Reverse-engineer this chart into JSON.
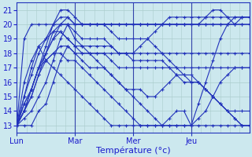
{
  "xlabel": "Température (°c)",
  "xlim": [
    0,
    96
  ],
  "ylim": [
    12.5,
    21.5
  ],
  "yticks": [
    13,
    14,
    15,
    16,
    17,
    18,
    19,
    20,
    21
  ],
  "day_ticks": [
    0,
    24,
    48,
    72
  ],
  "day_labels": [
    "Lun",
    "Mar",
    "Mer",
    "Jeu"
  ],
  "bg_color": "#cce8ee",
  "line_color": "#2233bb",
  "grid_color": "#aacccc",
  "series": [
    {
      "x": [
        0,
        3,
        6,
        9,
        12,
        15,
        18,
        21,
        24,
        27,
        30,
        33,
        36,
        39,
        42,
        45,
        48,
        51,
        54,
        57,
        60,
        63,
        66,
        69,
        72,
        75,
        78,
        81,
        84,
        87,
        90,
        93,
        96
      ],
      "y": [
        13,
        13,
        13,
        14,
        14.5,
        16,
        17.5,
        18.5,
        18,
        18,
        18,
        18,
        18,
        18,
        18,
        18,
        18,
        18.5,
        19,
        19.5,
        20,
        20,
        20,
        20,
        20,
        20,
        20,
        20,
        20,
        20,
        20,
        20.5,
        20.5
      ]
    },
    {
      "x": [
        0,
        3,
        6,
        9,
        12,
        15,
        18,
        21,
        24,
        27,
        30,
        33,
        36,
        39,
        42,
        45,
        48,
        51,
        54,
        57,
        60,
        63,
        66,
        69,
        72,
        75,
        78,
        81,
        84,
        87,
        90,
        93,
        96
      ],
      "y": [
        13,
        13.5,
        14,
        15,
        16,
        17.5,
        19,
        20,
        20,
        20,
        20,
        20,
        20,
        20,
        20,
        20,
        20,
        20,
        20,
        20,
        20,
        20,
        20,
        20,
        20,
        20,
        20,
        20,
        20,
        20,
        20,
        20,
        20
      ]
    },
    {
      "x": [
        0,
        3,
        6,
        9,
        12,
        15,
        18,
        21,
        24,
        27,
        30,
        33,
        36,
        39,
        42,
        45,
        48,
        51,
        54,
        57,
        60,
        63,
        66,
        69,
        72,
        75,
        78,
        81,
        84,
        87,
        90,
        93,
        96
      ],
      "y": [
        13,
        14,
        15,
        16.5,
        18,
        19.5,
        19.5,
        19,
        18.5,
        18.5,
        18.5,
        18.5,
        18.5,
        18.5,
        18,
        18,
        18,
        18,
        18,
        18,
        18,
        18,
        18,
        18,
        18,
        18,
        18,
        18,
        18,
        18,
        18,
        18,
        18
      ]
    },
    {
      "x": [
        0,
        3,
        6,
        9,
        12,
        15,
        18,
        21,
        24,
        27,
        30,
        33,
        36,
        39,
        42,
        45,
        48,
        51,
        54,
        57,
        60,
        63,
        66,
        69,
        72,
        75,
        78,
        81,
        84,
        87,
        90,
        93,
        96
      ],
      "y": [
        13,
        14.5,
        15.5,
        17,
        18,
        19,
        20,
        20.5,
        20,
        20,
        20,
        20,
        20,
        20,
        20,
        20,
        20,
        20,
        20,
        20,
        20,
        20.5,
        20.5,
        20.5,
        20.5,
        20.5,
        20.5,
        20.5,
        20.5,
        20.5,
        20.5,
        20.5,
        20.5
      ]
    },
    {
      "x": [
        0,
        3,
        6,
        9,
        12,
        15,
        18,
        21,
        24,
        27,
        30,
        33,
        36,
        39,
        42,
        45,
        48,
        51,
        54,
        57,
        60,
        63,
        66,
        69,
        72,
        75,
        78,
        81,
        84,
        87,
        90,
        93,
        96
      ],
      "y": [
        13,
        14.5,
        15.5,
        17,
        18.5,
        20,
        21,
        21,
        20.5,
        20,
        20,
        20,
        20,
        20,
        20,
        20,
        20,
        20,
        20,
        20,
        20,
        20,
        20,
        20,
        20,
        20,
        20.5,
        21,
        21,
        20.5,
        20,
        20,
        20
      ]
    },
    {
      "x": [
        0,
        3,
        6,
        9,
        12,
        15,
        18,
        21,
        24,
        27,
        30,
        33,
        36,
        39,
        42,
        45,
        48,
        51,
        54,
        57,
        60,
        63,
        66,
        69,
        72,
        75,
        78,
        81,
        84,
        87,
        90,
        93,
        96
      ],
      "y": [
        13,
        15,
        16.5,
        18,
        19,
        20,
        20,
        20,
        19,
        18.5,
        18,
        18,
        18,
        17.5,
        17,
        17,
        17,
        17,
        17,
        17,
        17,
        17,
        17,
        17,
        17,
        17,
        17,
        17,
        17,
        17,
        17,
        17,
        17
      ]
    },
    {
      "x": [
        0,
        3,
        6,
        9,
        12,
        15,
        18,
        21,
        24,
        27,
        30,
        33,
        36,
        39,
        42,
        45,
        48,
        51,
        54,
        57,
        60,
        63,
        66,
        69,
        72,
        75,
        78,
        81,
        84,
        87,
        90,
        93,
        96
      ],
      "y": [
        13,
        14,
        15.5,
        17,
        18,
        19,
        19.5,
        19,
        18.5,
        18,
        18,
        17.5,
        17,
        16.5,
        16,
        15.5,
        15,
        14.5,
        14,
        13.5,
        13,
        13,
        13,
        13,
        13,
        13.5,
        14,
        15,
        16,
        16.5,
        17,
        17,
        17
      ]
    },
    {
      "x": [
        0,
        3,
        6,
        9,
        12,
        15,
        18,
        21,
        24,
        27,
        30,
        33,
        36,
        39,
        42,
        45,
        48,
        51,
        54,
        57,
        60,
        63,
        66,
        69,
        72,
        75,
        78,
        81,
        84,
        87,
        90,
        93,
        96
      ],
      "y": [
        13,
        14,
        15.5,
        17,
        17.5,
        18,
        18,
        17.5,
        17.5,
        17,
        16.5,
        16,
        15.5,
        15,
        14.5,
        14,
        13.5,
        13,
        13,
        13,
        13,
        13,
        13,
        13,
        13,
        14.5,
        16,
        17.5,
        19,
        20,
        20.5,
        20.5,
        20.5
      ]
    },
    {
      "x": [
        0,
        3,
        6,
        9,
        12,
        15,
        18,
        21,
        24,
        27,
        30,
        33,
        36,
        39,
        42,
        45,
        48,
        51,
        54,
        57,
        60,
        63,
        66,
        69,
        72,
        75,
        78,
        81,
        84,
        87,
        90,
        93,
        96
      ],
      "y": [
        13,
        15,
        17,
        18.5,
        17.5,
        17,
        16.5,
        16,
        15.5,
        15,
        14.5,
        14,
        13.5,
        13,
        13,
        13,
        13,
        13,
        13,
        13,
        13,
        13.5,
        14,
        14,
        13,
        13,
        13,
        13,
        13,
        13,
        13,
        13,
        13
      ]
    },
    {
      "x": [
        0,
        3,
        6,
        9,
        12,
        15,
        18,
        21,
        24,
        27,
        30,
        33,
        36,
        39,
        42,
        45,
        48,
        51,
        54,
        57,
        60,
        63,
        66,
        69,
        72,
        75,
        78,
        81,
        84,
        87,
        90,
        93,
        96
      ],
      "y": [
        13,
        16,
        17.5,
        18.5,
        19,
        19.5,
        20,
        20,
        19.5,
        19,
        19,
        19,
        19,
        18.5,
        18,
        18,
        17.5,
        17.5,
        17.5,
        17.5,
        17.5,
        17,
        16.5,
        16,
        16,
        16,
        15.5,
        15,
        14.5,
        14,
        13.5,
        13,
        13
      ]
    },
    {
      "x": [
        0,
        3,
        6,
        9,
        12,
        15,
        18,
        21,
        24,
        27,
        30,
        33,
        36,
        39,
        42,
        45,
        48,
        51,
        54,
        57,
        60,
        63,
        66,
        69,
        72,
        75,
        78,
        81,
        84,
        87,
        90,
        93,
        96
      ],
      "y": [
        13,
        14,
        15,
        16.5,
        17.5,
        18,
        18.5,
        18.5,
        18,
        17.5,
        17,
        17,
        17,
        16.5,
        16,
        15.5,
        15.5,
        15.5,
        15,
        15,
        15.5,
        16,
        16.5,
        16.5,
        16.5,
        16,
        15.5,
        15,
        14.5,
        14,
        14,
        14,
        14
      ]
    },
    {
      "x": [
        0,
        3,
        6,
        9,
        12,
        15,
        18,
        21,
        24,
        27,
        30,
        33,
        36,
        39,
        42,
        45,
        48,
        51,
        54,
        57,
        60,
        63,
        66,
        69,
        72,
        75,
        78,
        81,
        84,
        87,
        90,
        93,
        96
      ],
      "y": [
        13,
        19,
        20,
        20,
        20,
        20,
        20.5,
        20.5,
        20,
        20,
        20,
        20,
        20,
        19.5,
        19,
        19,
        19,
        19,
        19,
        18.5,
        18,
        17.5,
        17,
        16.5,
        16,
        16,
        15.5,
        15,
        14.5,
        14,
        13.5,
        13,
        13
      ]
    }
  ]
}
